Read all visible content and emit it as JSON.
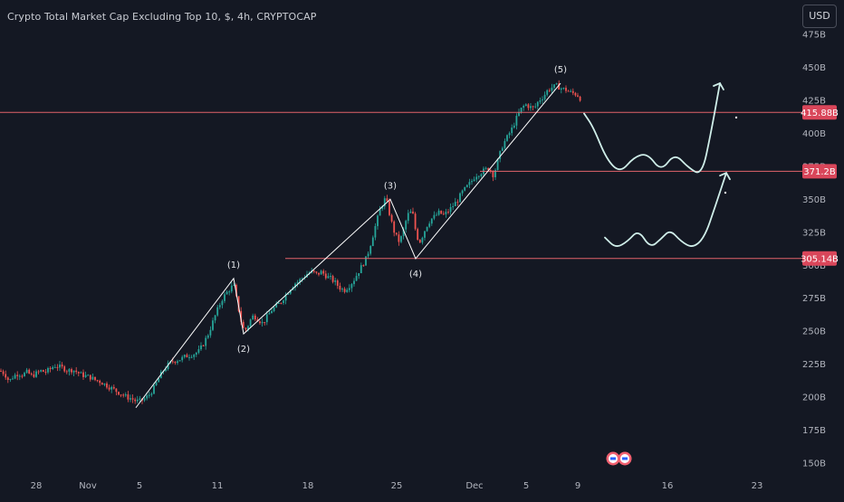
{
  "header": {
    "title": "Crypto Total Market Cap Excluding Top 10, $, 4h, CRYPTOCAP",
    "currency": "USD"
  },
  "colors": {
    "background": "#141823",
    "up": "#26a69a",
    "down": "#ef5350",
    "level_line": "#e2636b",
    "level_badge": "#d9465a",
    "axis_text": "#b2b5be",
    "wave_line": "#ffffff",
    "projection": "#cfeee9"
  },
  "chart_data": {
    "type": "candlestick",
    "title": "Crypto Total Market Cap Excluding Top 10, $, 4h, CRYPTOCAP",
    "xlabel": "",
    "ylabel": "",
    "grid": false,
    "y_unit": "B",
    "y_axis": {
      "ticks": [
        "150B",
        "175B",
        "200B",
        "225B",
        "250B",
        "275B",
        "300B",
        "325B",
        "350B",
        "375B",
        "400B",
        "425B",
        "450B",
        "475B"
      ],
      "range": [
        148,
        480
      ]
    },
    "x_axis": {
      "ticks": [
        "28",
        "Nov",
        "5",
        "11",
        "18",
        "25",
        "Dec",
        "5",
        "9",
        "16",
        "23"
      ]
    },
    "price_trace": [
      [
        0,
        220
      ],
      [
        5,
        218
      ],
      [
        10,
        212
      ],
      [
        15,
        216
      ],
      [
        20,
        218
      ],
      [
        25,
        217
      ],
      [
        30,
        219
      ],
      [
        35,
        216
      ],
      [
        40,
        218
      ],
      [
        45,
        220
      ],
      [
        50,
        219
      ],
      [
        55,
        221
      ],
      [
        60,
        224
      ],
      [
        65,
        223
      ],
      [
        70,
        222
      ],
      [
        75,
        220
      ],
      [
        80,
        221
      ],
      [
        85,
        219
      ],
      [
        90,
        217
      ],
      [
        95,
        216
      ],
      [
        100,
        215
      ],
      [
        105,
        213
      ],
      [
        110,
        212
      ],
      [
        115,
        210
      ],
      [
        120,
        208
      ],
      [
        125,
        206
      ],
      [
        130,
        204
      ],
      [
        135,
        202
      ],
      [
        140,
        200
      ],
      [
        145,
        199
      ],
      [
        150,
        197
      ],
      [
        155,
        197
      ],
      [
        160,
        199
      ],
      [
        165,
        202
      ],
      [
        170,
        207
      ],
      [
        175,
        214
      ],
      [
        180,
        220
      ],
      [
        185,
        224
      ],
      [
        190,
        227
      ],
      [
        195,
        228
      ],
      [
        200,
        229
      ],
      [
        205,
        231
      ],
      [
        210,
        232
      ],
      [
        215,
        233
      ],
      [
        220,
        235
      ],
      [
        225,
        241
      ],
      [
        230,
        248
      ],
      [
        235,
        257
      ],
      [
        240,
        266
      ],
      [
        245,
        274
      ],
      [
        250,
        279
      ],
      [
        255,
        283
      ],
      [
        258,
        285
      ],
      [
        261,
        275
      ],
      [
        264,
        265
      ],
      [
        267,
        255
      ],
      [
        270,
        250
      ],
      [
        273,
        253
      ],
      [
        276,
        258
      ],
      [
        280,
        262
      ],
      [
        285,
        259
      ],
      [
        290,
        256
      ],
      [
        295,
        261
      ],
      [
        300,
        266
      ],
      [
        305,
        269
      ],
      [
        310,
        272
      ],
      [
        315,
        277
      ],
      [
        320,
        282
      ],
      [
        325,
        286
      ],
      [
        330,
        288
      ],
      [
        335,
        291
      ],
      [
        340,
        294
      ],
      [
        345,
        295
      ],
      [
        350,
        293
      ],
      [
        355,
        295
      ],
      [
        360,
        292
      ],
      [
        365,
        290
      ],
      [
        370,
        287
      ],
      [
        375,
        283
      ],
      [
        380,
        281
      ],
      [
        385,
        284
      ],
      [
        390,
        288
      ],
      [
        395,
        294
      ],
      [
        400,
        300
      ],
      [
        405,
        306
      ],
      [
        410,
        318
      ],
      [
        415,
        331
      ],
      [
        420,
        343
      ],
      [
        425,
        350
      ],
      [
        428,
        346
      ],
      [
        431,
        336
      ],
      [
        435,
        326
      ],
      [
        440,
        318
      ],
      [
        444,
        322
      ],
      [
        448,
        333
      ],
      [
        452,
        341
      ],
      [
        456,
        338
      ],
      [
        460,
        322
      ],
      [
        464,
        318
      ],
      [
        468,
        325
      ],
      [
        472,
        331
      ],
      [
        476,
        335
      ],
      [
        480,
        337
      ],
      [
        485,
        340
      ],
      [
        490,
        338
      ],
      [
        495,
        341
      ],
      [
        500,
        345
      ],
      [
        505,
        349
      ],
      [
        510,
        355
      ],
      [
        515,
        359
      ],
      [
        520,
        363
      ],
      [
        525,
        368
      ],
      [
        530,
        370
      ],
      [
        535,
        372
      ],
      [
        540,
        374
      ],
      [
        545,
        368
      ],
      [
        550,
        380
      ],
      [
        555,
        391
      ],
      [
        560,
        397
      ],
      [
        565,
        403
      ],
      [
        570,
        411
      ],
      [
        575,
        418
      ],
      [
        580,
        422
      ],
      [
        585,
        420
      ],
      [
        590,
        419
      ],
      [
        595,
        425
      ],
      [
        600,
        428
      ],
      [
        605,
        433
      ],
      [
        610,
        435
      ],
      [
        615,
        436
      ],
      [
        620,
        434
      ],
      [
        625,
        433
      ],
      [
        630,
        431
      ],
      [
        635,
        430
      ],
      [
        640,
        428
      ],
      [
        643,
        421
      ]
    ],
    "waves": [
      {
        "label": "(1)",
        "x": 258,
        "y": 290,
        "label_above": true
      },
      {
        "label": "(2)",
        "x": 269,
        "y": 248,
        "label_above": false
      },
      {
        "label": "(3)",
        "x": 431,
        "y": 350,
        "label_above": true
      },
      {
        "label": "(4)",
        "x": 459,
        "y": 305,
        "label_above": false
      },
      {
        "label": "(5)",
        "x": 619,
        "y": 438,
        "label_above": true
      }
    ],
    "wave_start": {
      "x": 150,
      "y": 192
    },
    "levels": [
      {
        "value": 415.88,
        "label": "415.88B",
        "x_start": 0
      },
      {
        "value": 371.2,
        "label": "371.2B",
        "x_start": 530
      },
      {
        "value": 305.14,
        "label": "305.14B",
        "x_start": 315
      }
    ],
    "projections": [
      {
        "points": [
          [
            645,
            415
          ],
          [
            655,
            405
          ],
          [
            670,
            380
          ],
          [
            685,
            370
          ],
          [
            700,
            382
          ],
          [
            715,
            385
          ],
          [
            730,
            371
          ],
          [
            745,
            385
          ],
          [
            760,
            374
          ],
          [
            775,
            368
          ],
          [
            785,
            400
          ],
          [
            795,
            438
          ]
        ],
        "arrow": true
      },
      {
        "points": [
          [
            668,
            321
          ],
          [
            680,
            313
          ],
          [
            693,
            318
          ],
          [
            705,
            327
          ],
          [
            718,
            313
          ],
          [
            730,
            320
          ],
          [
            740,
            327
          ],
          [
            752,
            318
          ],
          [
            765,
            313
          ],
          [
            778,
            321
          ],
          [
            790,
            345
          ],
          [
            802,
            370
          ]
        ],
        "arrow": true
      }
    ],
    "dots": [
      [
        813,
        412
      ],
      [
        801,
        355
      ]
    ]
  }
}
